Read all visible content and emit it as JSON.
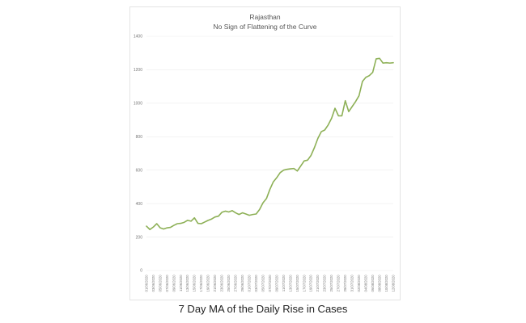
{
  "caption": "7 Day MA of the Daily Rise in Cases",
  "chart_data": {
    "type": "line",
    "title": "Rajasthan",
    "subtitle": "No Sign of Flattening of the Curve",
    "xlabel": "",
    "ylabel": "",
    "ylim": [
      0,
      1400
    ],
    "yticks": [
      0,
      200,
      400,
      600,
      800,
      1000,
      1200,
      1400
    ],
    "grid": false,
    "line_color": "#8db056",
    "x_tick_labels": [
      "01/06/2020",
      "03/06/2020",
      "05/06/2020",
      "07/06/2020",
      "09/06/2020",
      "11/06/2020",
      "13/06/2020",
      "15/06/2020",
      "17/06/2020",
      "19/06/2020",
      "21/06/2020",
      "23/06/2020",
      "25/06/2020",
      "27/06/2020",
      "29/06/2020",
      "01/07/2020",
      "03/07/2020",
      "05/07/2020",
      "07/07/2020",
      "09/07/2020",
      "11/07/2020",
      "13/07/2020",
      "15/07/2020",
      "17/07/2020",
      "19/07/2020",
      "21/07/2020",
      "23/07/2020",
      "25/07/2020",
      "27/07/2020",
      "29/07/2020",
      "31/07/2020",
      "02/08/2020",
      "04/08/2020",
      "06/08/2020",
      "08/08/2020",
      "10/08/2020",
      "12/08/2020"
    ],
    "series": [
      {
        "x": [
          "01/06/2020",
          "02/06/2020",
          "03/06/2020",
          "04/06/2020",
          "05/06/2020",
          "06/06/2020",
          "07/06/2020",
          "08/06/2020",
          "09/06/2020",
          "10/06/2020",
          "11/06/2020",
          "12/06/2020",
          "13/06/2020",
          "14/06/2020",
          "15/06/2020",
          "16/06/2020",
          "17/06/2020",
          "18/06/2020",
          "19/06/2020",
          "20/06/2020",
          "21/06/2020",
          "22/06/2020",
          "23/06/2020",
          "24/06/2020",
          "25/06/2020",
          "26/06/2020",
          "27/06/2020",
          "28/06/2020",
          "29/06/2020",
          "30/06/2020",
          "01/07/2020",
          "02/07/2020",
          "03/07/2020",
          "04/07/2020",
          "05/07/2020",
          "06/07/2020",
          "07/07/2020",
          "08/07/2020",
          "09/07/2020",
          "10/07/2020",
          "11/07/2020",
          "12/07/2020",
          "13/07/2020",
          "14/07/2020",
          "15/07/2020",
          "16/07/2020",
          "17/07/2020",
          "18/07/2020",
          "19/07/2020",
          "20/07/2020",
          "21/07/2020",
          "22/07/2020",
          "23/07/2020",
          "24/07/2020",
          "25/07/2020",
          "26/07/2020",
          "27/07/2020",
          "28/07/2020",
          "29/07/2020",
          "30/07/2020",
          "31/07/2020",
          "01/08/2020",
          "02/08/2020",
          "03/08/2020",
          "04/08/2020",
          "05/08/2020",
          "06/08/2020",
          "07/08/2020",
          "08/08/2020",
          "09/08/2020",
          "10/08/2020",
          "11/08/2020",
          "12/08/2020"
        ],
        "values": [
          265,
          245,
          260,
          280,
          255,
          248,
          255,
          258,
          270,
          280,
          282,
          288,
          300,
          295,
          315,
          282,
          280,
          290,
          300,
          308,
          320,
          325,
          348,
          355,
          350,
          358,
          345,
          335,
          345,
          338,
          330,
          335,
          338,
          365,
          405,
          430,
          485,
          530,
          555,
          585,
          600,
          605,
          608,
          610,
          595,
          625,
          655,
          660,
          688,
          735,
          790,
          830,
          840,
          870,
          910,
          970,
          925,
          925,
          1015,
          950,
          980,
          1010,
          1045,
          1130,
          1155,
          1165,
          1185,
          1265,
          1268,
          1240,
          1242,
          1240,
          1242
        ]
      }
    ]
  }
}
